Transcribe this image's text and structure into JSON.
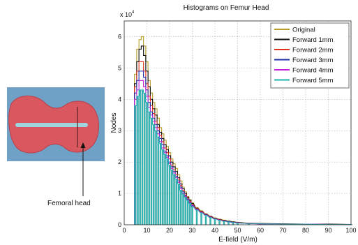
{
  "figure": {
    "inset_label": "Femoral head",
    "colors": {
      "bone_fill": "#d9575f",
      "bone_stroke": "#b8404a",
      "panel_bg": "#6fa0c6",
      "canal": "#9ed4dd"
    }
  },
  "chart_data": {
    "type": "bar",
    "title": "Histograms on Femur Head",
    "xlabel": "E-field (V/m)",
    "ylabel": "Nodes",
    "y_multiplier": "x 10",
    "y_multiplier_exp": "4",
    "xlim": [
      0,
      100
    ],
    "ylim": [
      0,
      6.5
    ],
    "xticks": [
      0,
      10,
      20,
      30,
      40,
      50,
      60,
      70,
      80,
      90,
      100
    ],
    "yticks": [
      0,
      1,
      2,
      3,
      4,
      5,
      6
    ],
    "grid": true,
    "legend_position": "top-right",
    "bin_width": 1,
    "x": [
      5,
      6,
      7,
      8,
      9,
      10,
      11,
      12,
      13,
      14,
      15,
      16,
      17,
      18,
      19,
      20,
      21,
      22,
      23,
      24,
      25,
      26,
      27,
      28,
      29,
      30,
      32,
      34,
      36,
      38,
      40,
      42,
      44,
      46,
      48,
      50,
      55,
      60,
      70,
      80,
      90,
      100
    ],
    "series": [
      {
        "name": "Original",
        "color": "#b8a02a",
        "values": [
          4.8,
          5.6,
          5.9,
          6.0,
          5.7,
          5.2,
          4.6,
          4.2,
          3.9,
          3.7,
          3.4,
          3.1,
          2.9,
          2.7,
          2.5,
          2.3,
          2.1,
          1.95,
          1.8,
          1.6,
          1.4,
          1.2,
          1.05,
          0.9,
          0.8,
          0.7,
          0.55,
          0.45,
          0.35,
          0.28,
          0.22,
          0.18,
          0.15,
          0.12,
          0.1,
          0.08,
          0.05,
          0.04,
          0.03,
          0.02,
          0.02,
          0.01
        ]
      },
      {
        "name": "Forward 1mm",
        "color": "#111111",
        "values": [
          4.5,
          5.2,
          5.6,
          5.7,
          5.4,
          4.9,
          4.4,
          4.0,
          3.7,
          3.5,
          3.2,
          2.95,
          2.75,
          2.55,
          2.4,
          2.2,
          2.0,
          1.85,
          1.7,
          1.5,
          1.3,
          1.15,
          1.0,
          0.88,
          0.78,
          0.68,
          0.53,
          0.43,
          0.34,
          0.27,
          0.21,
          0.17,
          0.14,
          0.11,
          0.09,
          0.07,
          0.05,
          0.04,
          0.03,
          0.02,
          0.02,
          0.01
        ]
      },
      {
        "name": "Forward 2mm",
        "color": "#e0301e",
        "values": [
          4.4,
          4.9,
          5.2,
          5.2,
          4.9,
          4.5,
          4.1,
          3.8,
          3.55,
          3.3,
          3.1,
          2.85,
          2.65,
          2.45,
          2.3,
          2.1,
          1.9,
          1.75,
          1.6,
          1.45,
          1.25,
          1.1,
          0.95,
          0.85,
          0.75,
          0.65,
          0.52,
          0.42,
          0.33,
          0.26,
          0.2,
          0.16,
          0.13,
          0.1,
          0.08,
          0.06,
          0.04,
          0.03,
          0.02,
          0.02,
          0.01,
          0.01
        ]
      },
      {
        "name": "Forward 3mm",
        "color": "#1c2fa8",
        "values": [
          4.2,
          4.6,
          4.9,
          4.9,
          4.7,
          4.3,
          3.9,
          3.6,
          3.4,
          3.2,
          3.0,
          2.75,
          2.55,
          2.35,
          2.2,
          2.0,
          1.85,
          1.7,
          1.55,
          1.4,
          1.2,
          1.05,
          0.92,
          0.82,
          0.72,
          0.62,
          0.5,
          0.4,
          0.32,
          0.25,
          0.19,
          0.15,
          0.12,
          0.1,
          0.08,
          0.06,
          0.04,
          0.03,
          0.02,
          0.02,
          0.01,
          0.01
        ]
      },
      {
        "name": "Forward 4mm",
        "color": "#c21fd6",
        "values": [
          4.0,
          4.3,
          4.6,
          4.6,
          4.4,
          4.1,
          3.75,
          3.5,
          3.3,
          3.1,
          2.9,
          2.65,
          2.45,
          2.3,
          2.15,
          1.95,
          1.8,
          1.65,
          1.5,
          1.35,
          1.15,
          1.0,
          0.9,
          0.8,
          0.7,
          0.6,
          0.49,
          0.4,
          0.31,
          0.24,
          0.19,
          0.15,
          0.12,
          0.09,
          0.07,
          0.06,
          0.04,
          0.03,
          0.02,
          0.02,
          0.01,
          0.01
        ]
      },
      {
        "name": "Forward 5mm",
        "color": "#1fb3b0",
        "values": [
          3.8,
          4.1,
          4.3,
          4.3,
          4.2,
          3.9,
          3.6,
          3.4,
          3.2,
          3.0,
          2.8,
          2.6,
          2.4,
          2.25,
          2.1,
          1.9,
          1.75,
          1.6,
          1.45,
          1.3,
          1.1,
          0.98,
          0.88,
          0.78,
          0.68,
          0.58,
          0.47,
          0.38,
          0.3,
          0.23,
          0.18,
          0.14,
          0.11,
          0.09,
          0.07,
          0.05,
          0.04,
          0.03,
          0.02,
          0.02,
          0.01,
          0.01
        ]
      }
    ]
  }
}
